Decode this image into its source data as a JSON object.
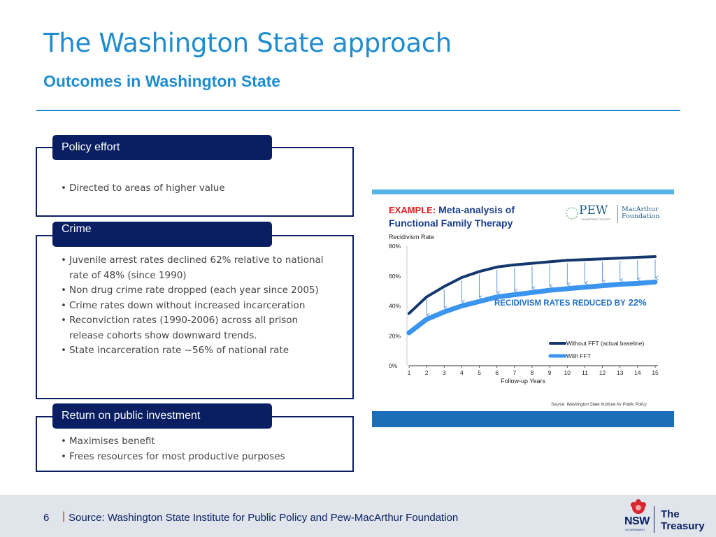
{
  "header": {
    "title": "The Washington State approach",
    "subtitle": "Outcomes in Washington State"
  },
  "sections": [
    {
      "heading": "Policy effort",
      "bullets": [
        "Directed to areas of higher value"
      ]
    },
    {
      "heading": "Crime",
      "bullets": [
        "Juvenile arrest rates declined 62% relative to national rate of 48% (since 1990)",
        "Non drug crime rate dropped (each year since 2005)",
        "Crime rates down without increased incarceration",
        "Reconviction rates (1990-2006) across all prison release cohorts show downward trends.",
        "State incarceration rate ~56% of national rate"
      ]
    },
    {
      "heading": "Return on public  investment",
      "bullets": [
        "Maximises benefit",
        "Frees resources for most productive purposes"
      ]
    }
  ],
  "chart_image": {
    "example_label": "EXAMPLE:",
    "title_part1": "Meta-analysis  of",
    "title_part2": "Functional  Family  Therapy",
    "logo_pew": "PEW",
    "logo_pew_sub": "CHARITABLE TRUSTS",
    "logo_macarthur_1": "MacArthur",
    "logo_macarthur_2": "Foundation",
    "y_axis_title": "Recidivism Rate",
    "annotation": "RECIDIVISM  RATES  REDUCED  BY",
    "annotation_pct": "22%",
    "source": "Source: Washington State Institute for Public Policy",
    "accent_color": "#1d6eb8"
  },
  "chart_data": {
    "type": "line",
    "title": "",
    "xlabel": "Follow-up Years",
    "ylabel": "Recidivism Rate",
    "x": [
      1,
      2,
      3,
      4,
      5,
      6,
      7,
      8,
      9,
      10,
      11,
      12,
      13,
      14,
      15
    ],
    "y_ticks": [
      "80%",
      "60%",
      "40%",
      "20%",
      "0%"
    ],
    "ylim": [
      0,
      80
    ],
    "series": [
      {
        "name": "Without FFT  (actual baseline)",
        "color": "#14386e",
        "values": [
          35,
          46,
          53,
          59,
          63,
          66,
          67.5,
          68.5,
          69.5,
          70.5,
          71,
          71.5,
          72,
          72.5,
          73
        ]
      },
      {
        "name": "With FFT",
        "color": "#3b94ee",
        "values": [
          22,
          31,
          36,
          40,
          43,
          46,
          47.5,
          49,
          50.5,
          51.5,
          52.5,
          53.5,
          54.5,
          55,
          56
        ]
      }
    ],
    "legend": "bottom-right"
  },
  "footer": {
    "page_number": "6",
    "separator": "|",
    "source": "Source: Washington State Institute for Public Policy and Pew-MacArthur  Foundation",
    "logo_nsw": "NSW",
    "logo_gov": "GOVERNMENT",
    "logo_treasury_1": "The",
    "logo_treasury_2": "Treasury"
  }
}
